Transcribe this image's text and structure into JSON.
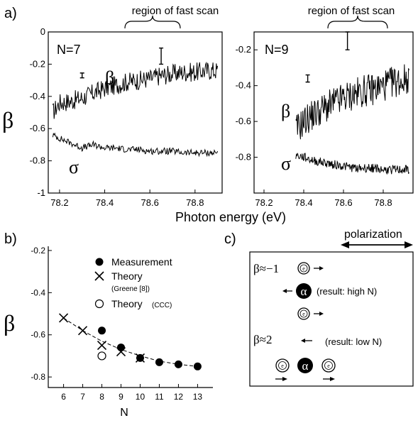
{
  "chart_data": [
    {
      "panel": "a)",
      "type": "line",
      "inset_label": "N=7",
      "region_label": "region of fast scan",
      "ylabel": "β",
      "xlim": [
        78.15,
        78.92
      ],
      "ylim": [
        -1,
        0
      ],
      "x_ticks": [
        78.2,
        78.4,
        78.6,
        78.8
      ],
      "y_ticks": [
        "0",
        "-0.2",
        "-0.4",
        "-0.6",
        "-0.8",
        "-1"
      ],
      "series": [
        {
          "name": "β",
          "x": [
            78.17,
            78.2,
            78.25,
            78.3,
            78.35,
            78.4,
            78.45,
            78.5,
            78.55,
            78.6,
            78.65,
            78.7,
            78.75,
            78.8,
            78.85,
            78.9
          ],
          "values": [
            -0.5,
            -0.44,
            -0.43,
            -0.41,
            -0.38,
            -0.35,
            -0.33,
            -0.31,
            -0.3,
            -0.29,
            -0.27,
            -0.26,
            -0.25,
            -0.25,
            -0.24,
            -0.24
          ],
          "noise": 0.06
        },
        {
          "name": "σ",
          "x": [
            78.17,
            78.2,
            78.25,
            78.3,
            78.35,
            78.4,
            78.45,
            78.5,
            78.55,
            78.6,
            78.65,
            78.7,
            78.75,
            78.8,
            78.85,
            78.9
          ],
          "values": [
            -0.64,
            -0.66,
            -0.69,
            -0.72,
            -0.7,
            -0.72,
            -0.72,
            -0.73,
            -0.73,
            -0.74,
            -0.74,
            -0.74,
            -0.75,
            -0.75,
            -0.75,
            -0.75
          ],
          "noise": 0.02
        }
      ],
      "error_bars": [
        {
          "x": 78.3,
          "y": -0.27,
          "half": 0.015
        },
        {
          "x": 78.65,
          "y": -0.15,
          "half": 0.05
        }
      ]
    },
    {
      "panel": "",
      "type": "line",
      "inset_label": "N=9",
      "region_label": "region of fast scan",
      "xlim": [
        78.15,
        78.95
      ],
      "ylim": [
        -1,
        -0.1
      ],
      "x_ticks": [
        78.2,
        78.4,
        78.6,
        78.8
      ],
      "y_ticks": [
        "-0.2",
        "-0.4",
        "-0.6",
        "-0.8"
      ],
      "series": [
        {
          "name": "β",
          "x": [
            78.36,
            78.4,
            78.45,
            78.5,
            78.55,
            78.6,
            78.65,
            78.7,
            78.75,
            78.8,
            78.85,
            78.9,
            78.93
          ],
          "values": [
            -0.65,
            -0.6,
            -0.56,
            -0.53,
            -0.5,
            -0.47,
            -0.45,
            -0.43,
            -0.42,
            -0.4,
            -0.38,
            -0.37,
            -0.35
          ],
          "noise": 0.09
        },
        {
          "name": "σ",
          "x": [
            78.36,
            78.4,
            78.45,
            78.5,
            78.55,
            78.6,
            78.65,
            78.7,
            78.75,
            78.8,
            78.85,
            78.9,
            78.93
          ],
          "values": [
            -0.79,
            -0.8,
            -0.82,
            -0.83,
            -0.84,
            -0.85,
            -0.86,
            -0.86,
            -0.86,
            -0.87,
            -0.87,
            -0.87,
            -0.87
          ],
          "noise": 0.025
        }
      ],
      "error_bars": [
        {
          "x": 78.42,
          "y": -0.36,
          "half": 0.02
        },
        {
          "x": 78.62,
          "y": -0.15,
          "half": 0.05
        }
      ]
    },
    {
      "panel": "b)",
      "type": "scatter",
      "xlabel": "N",
      "ylabel": "β",
      "xlim": [
        5.2,
        13.8
      ],
      "ylim": [
        -0.85,
        -0.18
      ],
      "x_ticks": [
        "6",
        "7",
        "8",
        "9",
        "10",
        "11",
        "12",
        "13"
      ],
      "y_ticks": [
        "-0.2",
        "-0.4",
        "-0.6",
        "-0.8"
      ],
      "legend": [
        "Measurement",
        "Theory",
        "(Greene [8])",
        "Theory",
        "(CCC)"
      ],
      "legend_position": "top-right",
      "measurement": {
        "x": [
          8,
          9,
          10,
          11,
          12,
          13
        ],
        "values": [
          -0.58,
          -0.66,
          -0.71,
          -0.73,
          -0.74,
          -0.75
        ]
      },
      "theory_greene": {
        "x": [
          6,
          7,
          8,
          9,
          10
        ],
        "values": [
          -0.52,
          -0.58,
          -0.65,
          -0.68,
          -0.71
        ]
      },
      "theory_ccc": {
        "x": [
          8
        ],
        "values": [
          -0.7
        ]
      },
      "trend": {
        "x": [
          6,
          7,
          8,
          9,
          10,
          11,
          12,
          13
        ],
        "values": [
          -0.52,
          -0.58,
          -0.63,
          -0.67,
          -0.7,
          -0.725,
          -0.74,
          -0.75
        ]
      }
    }
  ],
  "xlabel_shared": "Photon energy (eV)",
  "diagram": {
    "panel": "c)",
    "polarization_label": "polarization",
    "case_1": {
      "beta": "β≈−1",
      "result": "(result: high N)"
    },
    "case_2": {
      "beta": "β≈2",
      "result": "(result: low N)"
    },
    "electron": "e",
    "alpha": "α"
  }
}
